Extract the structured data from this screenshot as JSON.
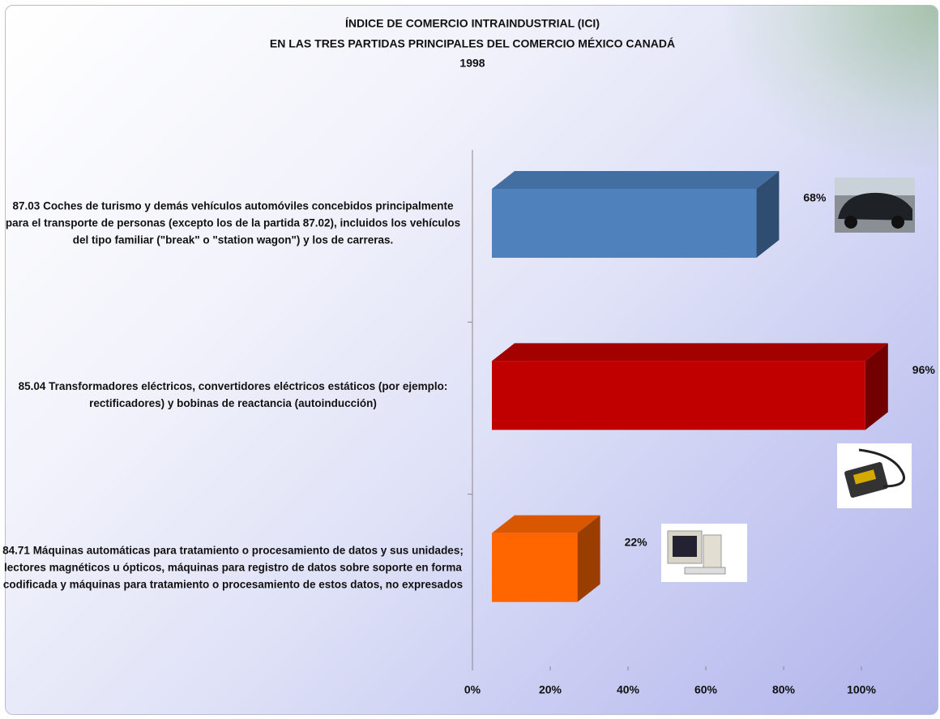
{
  "chart_data": {
    "type": "bar3d",
    "title": [
      "ÍNDICE DE COMERCIO INTRAINDUSTRIAL (ICI)",
      "EN LAS TRES PARTIDAS PRINCIPALES DEL COMERCIO MÉXICO CANADÁ",
      "1998"
    ],
    "categories": [
      "87.03 Coches de turismo y demás vehículos automóviles concebidos principalmente para el transporte de personas (excepto los de la partida 87.02), incluidos los vehículos del tipo familiar (\"break\" o \"station wagon\") y los de carreras.",
      "85.04 Transformadores eléctricos, convertidores eléctricos estáticos (por ejemplo: rectificadores) y bobinas de reactancia (autoinducción)",
      "84.71 Máquinas automáticas para tratamiento o procesamiento de datos y sus unidades; lectores magnéticos u ópticos, máquinas para registro de datos sobre soporte en forma codificada y máquinas para tratamiento o procesamiento de estos datos, no expresados"
    ],
    "values": [
      68,
      96,
      22
    ],
    "value_labels": [
      "68%",
      "96%",
      "22%"
    ],
    "colors": [
      "#4f81bd",
      "#c00000",
      "#ff6600"
    ],
    "xlim": [
      0,
      100
    ],
    "xticks": [
      {
        "value": 0,
        "label": "0%"
      },
      {
        "value": 20,
        "label": "20%"
      },
      {
        "value": 40,
        "label": "40%"
      },
      {
        "value": 60,
        "label": "60%"
      },
      {
        "value": 80,
        "label": "80%"
      },
      {
        "value": 100,
        "label": "100%"
      }
    ]
  }
}
